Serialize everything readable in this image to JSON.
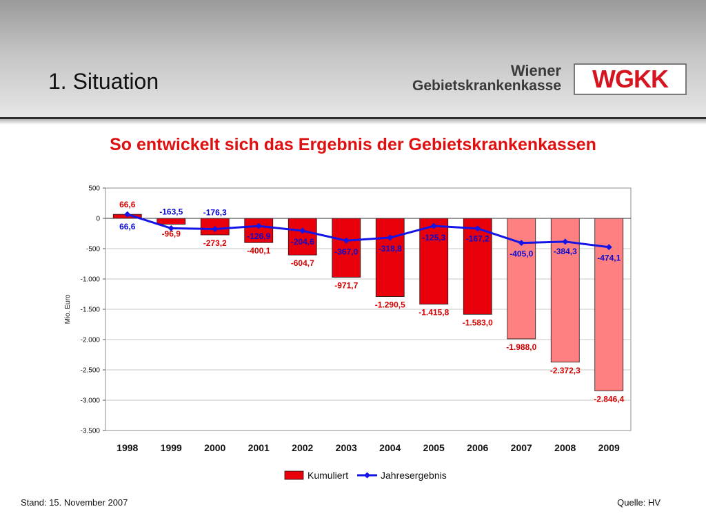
{
  "slide": {
    "title": "1. Situation",
    "logo_line1": "Wiener",
    "logo_line2": "Gebietskrankenkasse",
    "logo_mark": "WGKK",
    "footer_left": "Stand: 15. November 2007",
    "footer_right": "Quelle: HV"
  },
  "colors": {
    "bar_actual": "#e8000b",
    "bar_forecast": "#ff8080",
    "line": "#1414e6",
    "label_red": "#d40000",
    "label_blue": "#0a0ad0"
  },
  "chart_data": {
    "type": "bar",
    "title": "So entwickelt sich das Ergebnis der Gebietskrankenkassen",
    "ylabel": "Mio. Euro",
    "ylim": [
      -3500,
      500
    ],
    "yticks": [
      500,
      0,
      -500,
      -1000,
      -1500,
      -2000,
      -2500,
      -3000,
      -3500
    ],
    "ytick_labels": [
      "500",
      "0",
      "-500",
      "-1.000",
      "-1.500",
      "-2.000",
      "-2.500",
      "-3.000",
      "-3.500"
    ],
    "grid": true,
    "legend_position": "bottom",
    "categories": [
      "1998",
      "1999",
      "2000",
      "2001",
      "2002",
      "2003",
      "2004",
      "2005",
      "2006",
      "2007",
      "2008",
      "2009"
    ],
    "forecast_from_index": 9,
    "series": [
      {
        "name": "Kumuliert",
        "kind": "bar",
        "values": [
          66.6,
          -96.9,
          -273.2,
          -400.1,
          -604.7,
          -971.7,
          -1290.5,
          -1415.8,
          -1583.0,
          -1988.0,
          -2372.3,
          -2846.4
        ],
        "labels": [
          "66,6",
          "-96,9",
          "-273,2",
          "-400,1",
          "-604,7",
          "-971,7",
          "-1.290,5",
          "-1.415,8",
          "-1.583,0",
          "-1.988,0",
          "-2.372,3",
          "-2.846,4"
        ]
      },
      {
        "name": "Jahresergebnis",
        "kind": "line",
        "values": [
          66.6,
          -163.5,
          -176.3,
          -126.9,
          -204.6,
          -367.0,
          -318.8,
          -125.3,
          -167.2,
          -405.0,
          -384.3,
          -474.1
        ],
        "labels": [
          "66,6",
          "-163,5",
          "-176,3",
          "-126,9",
          "-204,6",
          "-367,0",
          "-318,8",
          "-125,3",
          "-167,2",
          "-405,0",
          "-384,3",
          "-474,1"
        ]
      }
    ]
  }
}
